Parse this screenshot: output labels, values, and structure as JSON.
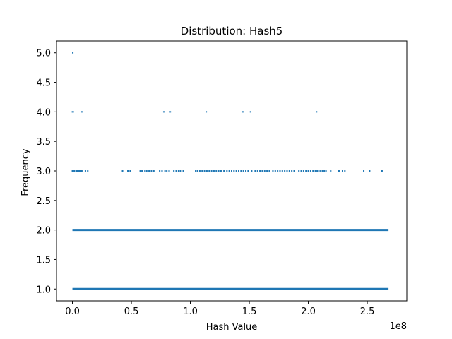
{
  "chart_data": {
    "type": "scatter",
    "title": "Distribution: Hash5",
    "xlabel": "Hash Value",
    "ylabel": "Frequency",
    "x_offset_label": "1e8",
    "xlim": [
      -13500000,
      283500000
    ],
    "ylim": [
      0.8,
      5.2
    ],
    "x_ticks": [
      0,
      50000000,
      100000000,
      150000000,
      200000000,
      250000000
    ],
    "x_tick_labels": [
      "0.0",
      "0.5",
      "1.0",
      "1.5",
      "2.0",
      "2.5"
    ],
    "y_ticks": [
      1.0,
      1.5,
      2.0,
      2.5,
      3.0,
      3.5,
      4.0,
      4.5,
      5.0
    ],
    "y_tick_labels": [
      "1.0",
      "1.5",
      "2.0",
      "2.5",
      "3.0",
      "3.5",
      "4.0",
      "4.5",
      "5.0"
    ],
    "grid": false,
    "marker_color": "#1f77b4",
    "dense_bands": [
      {
        "y": 1,
        "x_range": [
          0,
          268000000
        ]
      },
      {
        "y": 2,
        "x_range": [
          0,
          268000000
        ]
      }
    ],
    "series": [
      {
        "points": [
          {
            "x": 300000,
            "y": 5
          },
          {
            "x": 0,
            "y": 4
          },
          {
            "x": 700000,
            "y": 4
          },
          {
            "x": 8000000,
            "y": 4
          },
          {
            "x": 77500000,
            "y": 4
          },
          {
            "x": 83000000,
            "y": 4
          },
          {
            "x": 113500000,
            "y": 4
          },
          {
            "x": 144500000,
            "y": 4
          },
          {
            "x": 151000000,
            "y": 4
          },
          {
            "x": 207000000,
            "y": 4
          },
          {
            "x": 0,
            "y": 3
          },
          {
            "x": 1500000,
            "y": 3
          },
          {
            "x": 3000000,
            "y": 3
          },
          {
            "x": 4000000,
            "y": 3
          },
          {
            "x": 5000000,
            "y": 3
          },
          {
            "x": 6000000,
            "y": 3
          },
          {
            "x": 7000000,
            "y": 3
          },
          {
            "x": 8000000,
            "y": 3
          },
          {
            "x": 11000000,
            "y": 3
          },
          {
            "x": 13000000,
            "y": 3
          },
          {
            "x": 42500000,
            "y": 3
          },
          {
            "x": 47000000,
            "y": 3
          },
          {
            "x": 49000000,
            "y": 3
          },
          {
            "x": 57500000,
            "y": 3
          },
          {
            "x": 59000000,
            "y": 3
          },
          {
            "x": 61500000,
            "y": 3
          },
          {
            "x": 63000000,
            "y": 3
          },
          {
            "x": 65000000,
            "y": 3
          },
          {
            "x": 67000000,
            "y": 3
          },
          {
            "x": 69000000,
            "y": 3
          },
          {
            "x": 74000000,
            "y": 3
          },
          {
            "x": 76000000,
            "y": 3
          },
          {
            "x": 78500000,
            "y": 3
          },
          {
            "x": 80000000,
            "y": 3
          },
          {
            "x": 82000000,
            "y": 3
          },
          {
            "x": 86000000,
            "y": 3
          },
          {
            "x": 88000000,
            "y": 3
          },
          {
            "x": 90000000,
            "y": 3
          },
          {
            "x": 91500000,
            "y": 3
          },
          {
            "x": 94000000,
            "y": 3
          },
          {
            "x": 104500000,
            "y": 3
          },
          {
            "x": 106000000,
            "y": 3
          },
          {
            "x": 108000000,
            "y": 3
          },
          {
            "x": 110000000,
            "y": 3
          },
          {
            "x": 112000000,
            "y": 3
          },
          {
            "x": 114000000,
            "y": 3
          },
          {
            "x": 116000000,
            "y": 3
          },
          {
            "x": 118000000,
            "y": 3
          },
          {
            "x": 120000000,
            "y": 3
          },
          {
            "x": 122000000,
            "y": 3
          },
          {
            "x": 124000000,
            "y": 3
          },
          {
            "x": 126000000,
            "y": 3
          },
          {
            "x": 128500000,
            "y": 3
          },
          {
            "x": 131000000,
            "y": 3
          },
          {
            "x": 133000000,
            "y": 3
          },
          {
            "x": 135000000,
            "y": 3
          },
          {
            "x": 137000000,
            "y": 3
          },
          {
            "x": 139000000,
            "y": 3
          },
          {
            "x": 141000000,
            "y": 3
          },
          {
            "x": 143000000,
            "y": 3
          },
          {
            "x": 145000000,
            "y": 3
          },
          {
            "x": 147000000,
            "y": 3
          },
          {
            "x": 149000000,
            "y": 3
          },
          {
            "x": 152000000,
            "y": 3
          },
          {
            "x": 155000000,
            "y": 3
          },
          {
            "x": 157000000,
            "y": 3
          },
          {
            "x": 159000000,
            "y": 3
          },
          {
            "x": 161000000,
            "y": 3
          },
          {
            "x": 163000000,
            "y": 3
          },
          {
            "x": 165000000,
            "y": 3
          },
          {
            "x": 167000000,
            "y": 3
          },
          {
            "x": 170000000,
            "y": 3
          },
          {
            "x": 172000000,
            "y": 3
          },
          {
            "x": 174000000,
            "y": 3
          },
          {
            "x": 176000000,
            "y": 3
          },
          {
            "x": 178000000,
            "y": 3
          },
          {
            "x": 180000000,
            "y": 3
          },
          {
            "x": 182000000,
            "y": 3
          },
          {
            "x": 184000000,
            "y": 3
          },
          {
            "x": 186000000,
            "y": 3
          },
          {
            "x": 188000000,
            "y": 3
          },
          {
            "x": 192000000,
            "y": 3
          },
          {
            "x": 194000000,
            "y": 3
          },
          {
            "x": 196000000,
            "y": 3
          },
          {
            "x": 198000000,
            "y": 3
          },
          {
            "x": 200000000,
            "y": 3
          },
          {
            "x": 202000000,
            "y": 3
          },
          {
            "x": 204000000,
            "y": 3
          },
          {
            "x": 206000000,
            "y": 3
          },
          {
            "x": 207500000,
            "y": 3
          },
          {
            "x": 209000000,
            "y": 3
          },
          {
            "x": 210500000,
            "y": 3
          },
          {
            "x": 212000000,
            "y": 3
          },
          {
            "x": 213500000,
            "y": 3
          },
          {
            "x": 215000000,
            "y": 3
          },
          {
            "x": 219000000,
            "y": 3
          },
          {
            "x": 226000000,
            "y": 3
          },
          {
            "x": 229000000,
            "y": 3
          },
          {
            "x": 231000000,
            "y": 3
          },
          {
            "x": 247000000,
            "y": 3
          },
          {
            "x": 252000000,
            "y": 3
          },
          {
            "x": 262500000,
            "y": 3
          }
        ]
      }
    ]
  }
}
